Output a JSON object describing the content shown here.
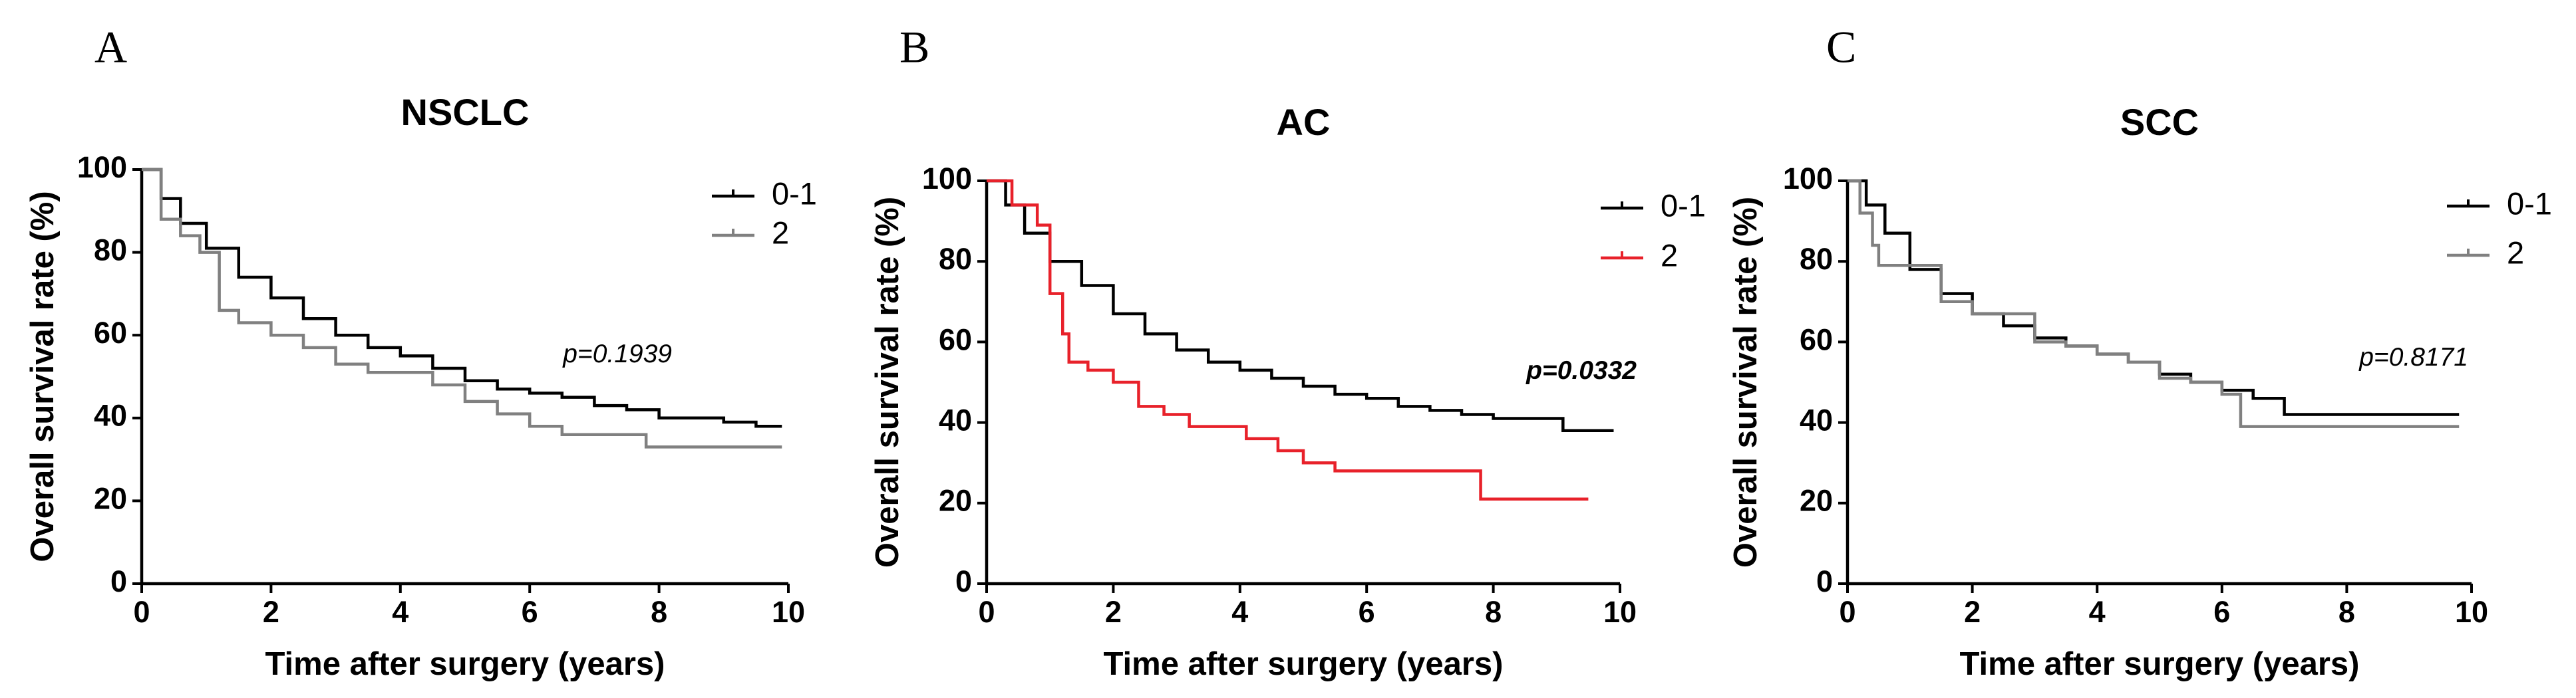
{
  "chart_data": [
    {
      "type": "line",
      "panel_label": "A",
      "title": "NSCLC",
      "xlabel": "Time after surgery (years)",
      "ylabel": "Overall survival rate (%)",
      "xlim": [
        0,
        10
      ],
      "ylim": [
        0,
        100
      ],
      "xticks": [
        0,
        2,
        4,
        6,
        8,
        10
      ],
      "yticks": [
        0,
        20,
        40,
        60,
        80,
        100
      ],
      "legend_position": "top-right",
      "annotation": "p=0.1939",
      "annotation_bold": false,
      "series": [
        {
          "name": "0-1",
          "color": "#000000",
          "x": [
            0,
            0.3,
            0.6,
            1.0,
            1.5,
            2.0,
            2.5,
            3.0,
            3.5,
            4.0,
            4.5,
            5.0,
            5.5,
            6.0,
            6.5,
            7.0,
            7.5,
            8.0,
            8.5,
            9.0,
            9.5,
            9.9
          ],
          "y": [
            100,
            93,
            87,
            81,
            74,
            69,
            64,
            60,
            57,
            55,
            52,
            49,
            47,
            46,
            45,
            43,
            42,
            40,
            40,
            39,
            38,
            38
          ]
        },
        {
          "name": "2",
          "color": "#808080",
          "x": [
            0,
            0.3,
            0.6,
            0.9,
            1.2,
            1.5,
            2.0,
            2.5,
            3.0,
            3.5,
            4.0,
            4.5,
            5.0,
            5.5,
            6.0,
            6.5,
            7.0,
            7.5,
            7.8,
            8.5,
            9.9
          ],
          "y": [
            100,
            88,
            84,
            80,
            66,
            63,
            60,
            57,
            53,
            51,
            51,
            48,
            44,
            41,
            38,
            36,
            36,
            36,
            33,
            33,
            33
          ]
        }
      ]
    },
    {
      "type": "line",
      "panel_label": "B",
      "title": "AC",
      "xlabel": "Time after surgery (years)",
      "ylabel": "Overall survival rate (%)",
      "xlim": [
        0,
        10
      ],
      "ylim": [
        0,
        100
      ],
      "xticks": [
        0,
        2,
        4,
        6,
        8,
        10
      ],
      "yticks": [
        0,
        20,
        40,
        60,
        80,
        100
      ],
      "legend_position": "top-right",
      "annotation": "p=0.0332",
      "annotation_bold": true,
      "series": [
        {
          "name": "0-1",
          "color": "#000000",
          "x": [
            0,
            0.3,
            0.6,
            1.0,
            1.5,
            2.0,
            2.5,
            3.0,
            3.5,
            4.0,
            4.5,
            5.0,
            5.5,
            6.0,
            6.5,
            7.0,
            7.5,
            8.0,
            8.5,
            9.0,
            9.1,
            9.9
          ],
          "y": [
            100,
            94,
            87,
            80,
            74,
            67,
            62,
            58,
            55,
            53,
            51,
            49,
            47,
            46,
            44,
            43,
            42,
            41,
            41,
            41,
            38,
            38
          ]
        },
        {
          "name": "2",
          "color": "#e8212a",
          "x": [
            0,
            0.4,
            0.8,
            1.0,
            1.2,
            1.3,
            1.6,
            2.0,
            2.4,
            2.8,
            3.2,
            3.6,
            4.1,
            4.6,
            5.0,
            5.5,
            7.7,
            7.8,
            9.5
          ],
          "y": [
            100,
            94,
            89,
            72,
            62,
            55,
            53,
            50,
            44,
            42,
            39,
            39,
            36,
            33,
            30,
            28,
            28,
            21,
            21
          ]
        }
      ]
    },
    {
      "type": "line",
      "panel_label": "C",
      "title": "SCC",
      "xlabel": "Time after surgery (years)",
      "ylabel": "Overall survival rate (%)",
      "xlim": [
        0,
        10
      ],
      "ylim": [
        0,
        100
      ],
      "xticks": [
        0,
        2,
        4,
        6,
        8,
        10
      ],
      "yticks": [
        0,
        20,
        40,
        60,
        80,
        100
      ],
      "legend_position": "top-right",
      "annotation": "p=0.8171",
      "annotation_bold": false,
      "series": [
        {
          "name": "0-1",
          "color": "#000000",
          "x": [
            0,
            0.3,
            0.6,
            1.0,
            1.5,
            2.0,
            2.5,
            3.0,
            3.5,
            4.0,
            4.5,
            5.0,
            5.5,
            6.0,
            6.5,
            7.0,
            7.5,
            8.0,
            9.8
          ],
          "y": [
            100,
            94,
            87,
            78,
            72,
            67,
            64,
            61,
            59,
            57,
            55,
            52,
            50,
            48,
            46,
            42,
            42,
            42,
            42
          ]
        },
        {
          "name": "2",
          "color": "#808080",
          "x": [
            0,
            0.2,
            0.4,
            0.5,
            1.2,
            1.5,
            2.0,
            2.5,
            3.0,
            3.5,
            4.0,
            4.5,
            5.0,
            5.5,
            6.0,
            6.3,
            7.0,
            8.0,
            9.8
          ],
          "y": [
            100,
            92,
            84,
            79,
            79,
            70,
            67,
            67,
            60,
            59,
            57,
            55,
            51,
            50,
            47,
            39,
            39,
            39,
            39
          ]
        }
      ]
    }
  ]
}
